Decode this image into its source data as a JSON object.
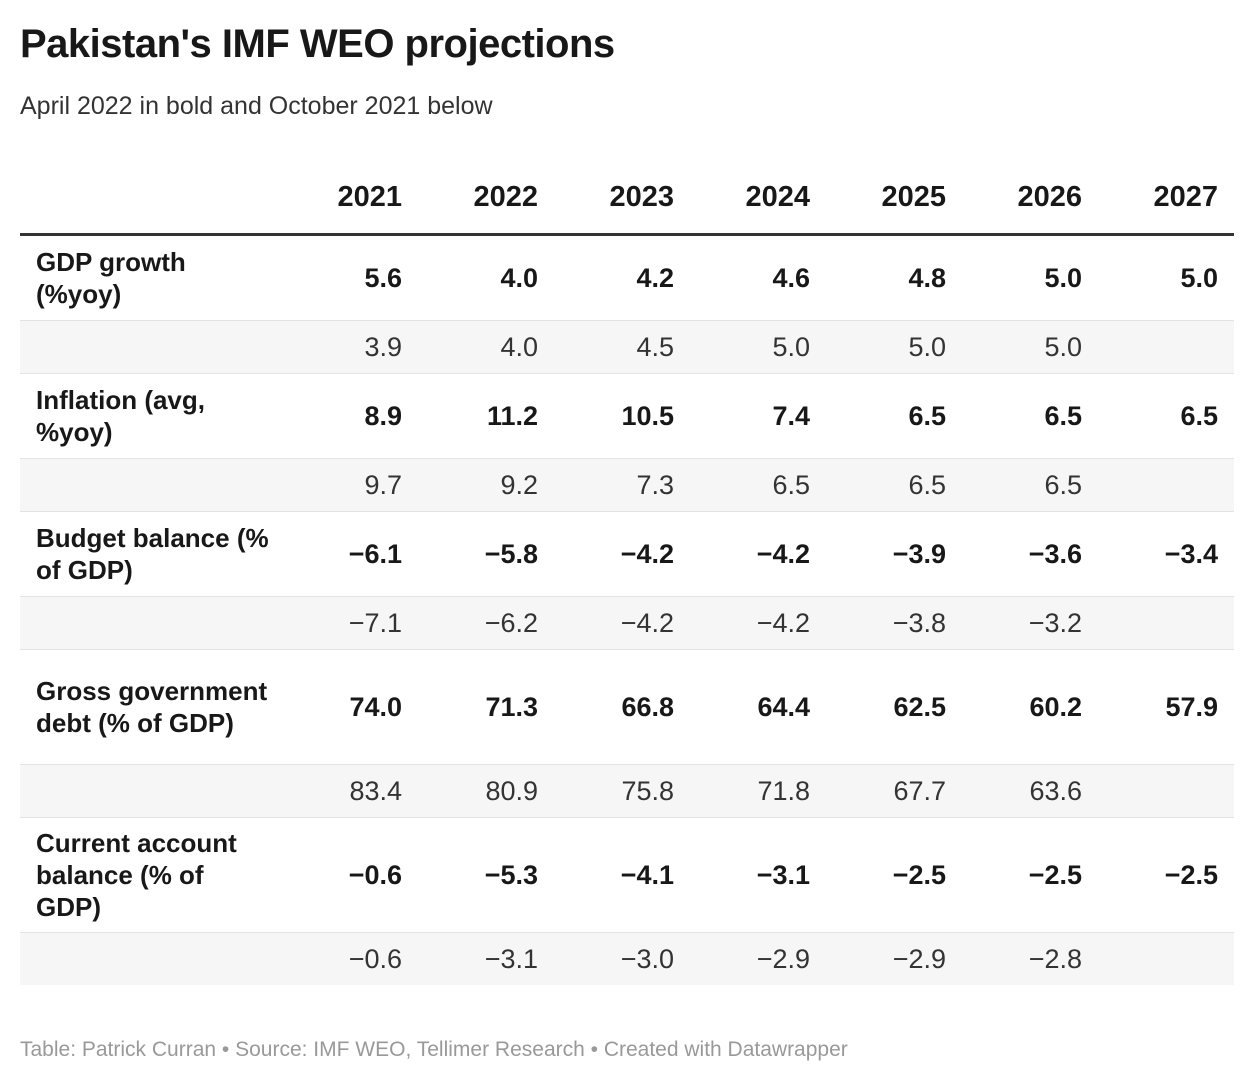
{
  "chart_data": {
    "type": "table",
    "title": "Pakistan's IMF WEO projections",
    "subtitle": "April 2022 in bold and October 2021 below",
    "columns": [
      "",
      "2021",
      "2022",
      "2023",
      "2024",
      "2025",
      "2026",
      "2027"
    ],
    "rows": [
      {
        "label": "GDP growth (%yoy)",
        "april_2022": [
          "5.6",
          "4.0",
          "4.2",
          "4.6",
          "4.8",
          "5.0",
          "5.0"
        ],
        "october_2021": [
          "3.9",
          "4.0",
          "4.5",
          "5.0",
          "5.0",
          "5.0",
          ""
        ]
      },
      {
        "label": "Inflation (avg, %yoy)",
        "april_2022": [
          "8.9",
          "11.2",
          "10.5",
          "7.4",
          "6.5",
          "6.5",
          "6.5"
        ],
        "october_2021": [
          "9.7",
          "9.2",
          "7.3",
          "6.5",
          "6.5",
          "6.5",
          ""
        ]
      },
      {
        "label": "Budget balance (% of GDP)",
        "april_2022": [
          "−6.1",
          "−5.8",
          "−4.2",
          "−4.2",
          "−3.9",
          "−3.6",
          "−3.4"
        ],
        "october_2021": [
          "−7.1",
          "−6.2",
          "−4.2",
          "−4.2",
          "−3.8",
          "−3.2",
          ""
        ]
      },
      {
        "label": "Gross government debt (% of GDP)",
        "april_2022": [
          "74.0",
          "71.3",
          "66.8",
          "64.4",
          "62.5",
          "60.2",
          "57.9"
        ],
        "october_2021": [
          "83.4",
          "80.9",
          "75.8",
          "71.8",
          "67.7",
          "63.6",
          ""
        ]
      },
      {
        "label": "Current account balance (% of GDP)",
        "april_2022": [
          "−0.6",
          "−5.3",
          "−4.1",
          "−3.1",
          "−2.5",
          "−2.5",
          "−2.5"
        ],
        "october_2021": [
          "−0.6",
          "−3.1",
          "−3.0",
          "−2.9",
          "−2.9",
          "−2.8",
          ""
        ]
      }
    ],
    "footer": "Table: Patrick Curran • Source: IMF WEO, Tellimer Research • Created with Datawrapper"
  }
}
